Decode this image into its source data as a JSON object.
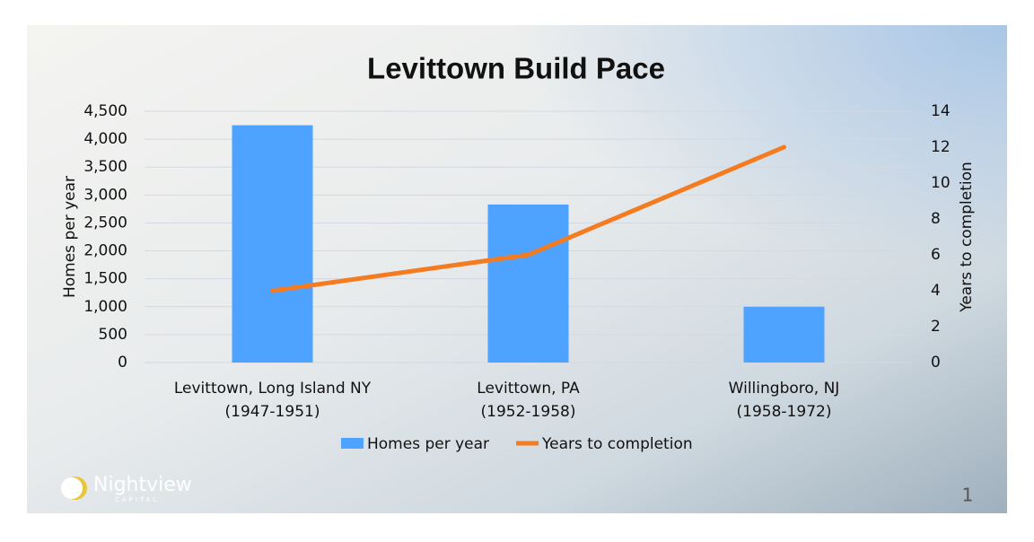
{
  "chart_data": {
    "type": "bar-line",
    "title": "Levittown Build Pace",
    "categories": [
      [
        "Levittown, Long Island NY",
        "(1947-1951)"
      ],
      [
        "Levittown, PA",
        "(1952-1958)"
      ],
      [
        "Willingboro, NJ",
        "(1958-1972)"
      ]
    ],
    "series": [
      {
        "name": "Homes per year",
        "type": "bar",
        "color": "#4da3ff",
        "values": [
          4250,
          2830,
          1000
        ]
      },
      {
        "name": "Years to completion",
        "type": "line",
        "axis": "y2",
        "color": "#f47b20",
        "values": [
          4,
          6,
          12
        ]
      }
    ],
    "y_label": "Homes per year",
    "y2_label": "Years to completion",
    "ylim": [
      0,
      4500
    ],
    "yticks": [
      0,
      500,
      {
        "value": 1000,
        "label": "1,000"
      },
      {
        "value": 1500,
        "label": "1,500"
      },
      {
        "value": 2000,
        "label": "2,000"
      },
      {
        "value": 2500,
        "label": "2,500"
      },
      {
        "value": 3000,
        "label": "3,000"
      },
      {
        "value": 3500,
        "label": "3,500"
      },
      {
        "value": 4000,
        "label": "4,000"
      },
      {
        "value": 4500,
        "label": "4,500"
      }
    ],
    "y2lim": [
      0,
      14
    ],
    "y2ticks": [
      0,
      2,
      4,
      6,
      8,
      10,
      12,
      14
    ],
    "grid": true,
    "legend": "bottom"
  },
  "logo": {
    "name": "Nightview",
    "sub": "CAPITAL"
  },
  "page_number": "1"
}
